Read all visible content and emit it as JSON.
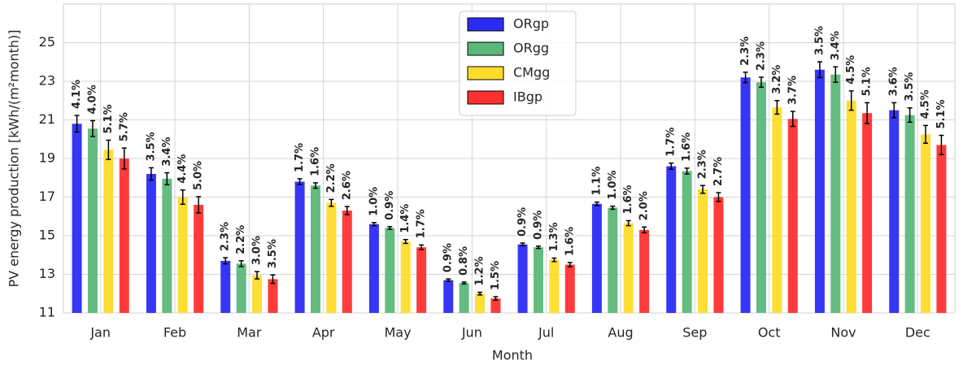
{
  "chart_data": {
    "type": "bar",
    "x_label": "Month",
    "y_label": "PV energy production [kWh/(m²month)]",
    "categories": [
      "Jan",
      "Feb",
      "Mar",
      "Apr",
      "May",
      "Jun",
      "Jul",
      "Aug",
      "Sep",
      "Oct",
      "Nov",
      "Dec"
    ],
    "ylim": [
      11,
      27
    ],
    "yticks": [
      11,
      13,
      15,
      17,
      19,
      21,
      23,
      25
    ],
    "grid": true,
    "legend": "upper center",
    "series": [
      {
        "name": "ORgp",
        "color": "#2b2bf5",
        "values": [
          20.8,
          18.2,
          13.7,
          17.8,
          15.6,
          12.7,
          14.55,
          16.65,
          18.6,
          23.2,
          23.6,
          21.5
        ],
        "errors": [
          0.43,
          0.32,
          0.16,
          0.15,
          0.08,
          0.06,
          0.07,
          0.09,
          0.16,
          0.27,
          0.41,
          0.39
        ],
        "labels": [
          "4.1%",
          "3.5%",
          "2.3%",
          "1.7%",
          "1.0%",
          "0.9%",
          "0.9%",
          "1.1%",
          "1.7%",
          "2.3%",
          "3.5%",
          "3.6%"
        ]
      },
      {
        "name": "ORgg",
        "color": "#5cb87a",
        "values": [
          20.55,
          17.95,
          13.55,
          17.6,
          15.4,
          12.55,
          14.4,
          16.45,
          18.35,
          22.95,
          23.35,
          21.25
        ],
        "errors": [
          0.41,
          0.31,
          0.15,
          0.14,
          0.07,
          0.05,
          0.06,
          0.08,
          0.15,
          0.26,
          0.4,
          0.37
        ],
        "labels": [
          "4.0%",
          "3.4%",
          "2.2%",
          "1.6%",
          "0.9%",
          "0.8%",
          "0.9%",
          "1.0%",
          "1.6%",
          "2.3%",
          "3.4%",
          "3.5%"
        ]
      },
      {
        "name": "CMgg",
        "color": "#ffdc2a",
        "values": [
          19.45,
          17.0,
          12.95,
          16.7,
          14.7,
          12.0,
          13.75,
          15.65,
          17.4,
          21.65,
          22.0,
          20.25
        ],
        "errors": [
          0.5,
          0.37,
          0.19,
          0.18,
          0.1,
          0.07,
          0.09,
          0.13,
          0.2,
          0.35,
          0.5,
          0.46
        ],
        "labels": [
          "5.1%",
          "4.4%",
          "3.0%",
          "2.2%",
          "1.4%",
          "1.2%",
          "1.3%",
          "1.6%",
          "2.3%",
          "3.2%",
          "4.5%",
          "4.5%"
        ]
      },
      {
        "name": "IBgp",
        "color": "#ff3030",
        "values": [
          19.0,
          16.6,
          12.75,
          16.3,
          14.4,
          11.75,
          13.5,
          15.3,
          17.0,
          21.05,
          21.35,
          19.7
        ],
        "errors": [
          0.54,
          0.42,
          0.22,
          0.21,
          0.12,
          0.09,
          0.11,
          0.15,
          0.23,
          0.39,
          0.54,
          0.5
        ],
        "labels": [
          "5.7%",
          "5.0%",
          "3.5%",
          "2.6%",
          "1.7%",
          "1.5%",
          "1.6%",
          "2.0%",
          "2.7%",
          "3.7%",
          "5.1%",
          "5.1%"
        ]
      }
    ]
  }
}
